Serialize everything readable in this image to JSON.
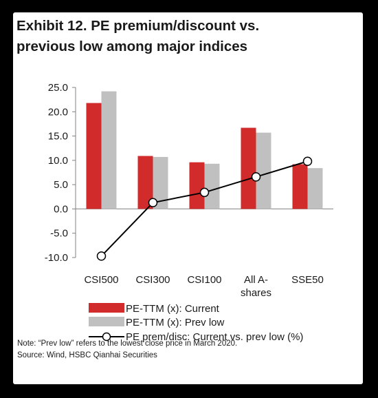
{
  "title_line1": "Exhibit 12. PE premium/discount vs.",
  "title_line2": "previous low among major indices",
  "note": "Note: “Prev low” refers to the lowest close price in March 2020.",
  "source": "Source: Wind, HSBC Qianhai Securities",
  "colors": {
    "current": "#d12b2b",
    "prev_low": "#c0c0c0",
    "line": "#000000",
    "marker_fill": "#ffffff"
  },
  "chart_data": {
    "type": "bar",
    "categories": [
      [
        "CSI500"
      ],
      [
        "CSI300"
      ],
      [
        "CSI100"
      ],
      [
        "All A-",
        "shares"
      ],
      [
        "SSE50"
      ]
    ],
    "ylim": [
      -10,
      25
    ],
    "yticks": [
      "25.0",
      "20.0",
      "15.0",
      "10.0",
      "5.0",
      "0.0",
      "-5.0",
      "-10.0"
    ],
    "ytick_values": [
      25,
      20,
      15,
      10,
      5,
      0,
      -5,
      -10
    ],
    "grid": false,
    "legend_position": "bottom",
    "series": [
      {
        "name": "PE-TTM (x): Current",
        "kind": "bar",
        "values": [
          21.8,
          10.9,
          9.6,
          16.7,
          9.2
        ]
      },
      {
        "name": "PE-TTM (x): Prev low",
        "kind": "bar",
        "values": [
          24.2,
          10.7,
          9.3,
          15.7,
          8.4
        ]
      },
      {
        "name": "PE prem/disc: Current vs. prev low (%)",
        "kind": "line",
        "values": [
          -9.7,
          1.3,
          3.4,
          6.6,
          9.8
        ]
      }
    ]
  }
}
